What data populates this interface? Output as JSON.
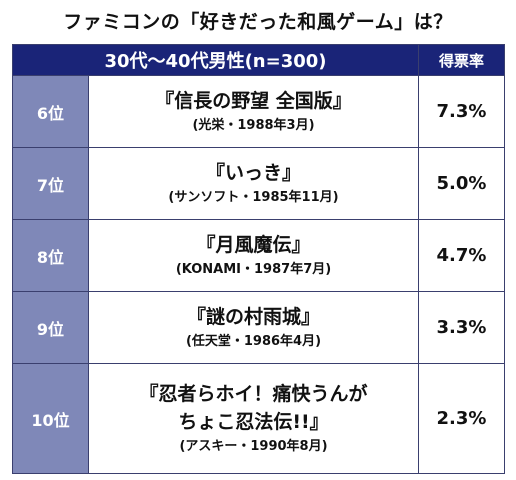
{
  "title": "ファミコンの「好きだった和風ゲーム」は？",
  "table": {
    "header": {
      "segment": "30代〜40代男性(n=300)",
      "rate": "得票率"
    },
    "rows": [
      {
        "rank": "6位",
        "game": "『信長の野望 全国版』",
        "meta": "(光栄・1988年3月)",
        "rate": "7.3%"
      },
      {
        "rank": "7位",
        "game": "『いっき』",
        "meta": "(サンソフト・1985年11月)",
        "rate": "5.0%"
      },
      {
        "rank": "8位",
        "game": "『月風魔伝』",
        "meta": "(KONAMI・1987年7月)",
        "rate": "4.7%"
      },
      {
        "rank": "9位",
        "game": "『謎の村雨城』",
        "meta": "(任天堂・1986年4月)",
        "rate": "3.3%"
      },
      {
        "rank": "10位",
        "game_line1": "『忍者らホイ！痛快うんが",
        "game_line2": "ちょこ忍法伝!!』",
        "meta": "(アスキー・1990年8月)",
        "rate": "2.3%"
      }
    ]
  }
}
